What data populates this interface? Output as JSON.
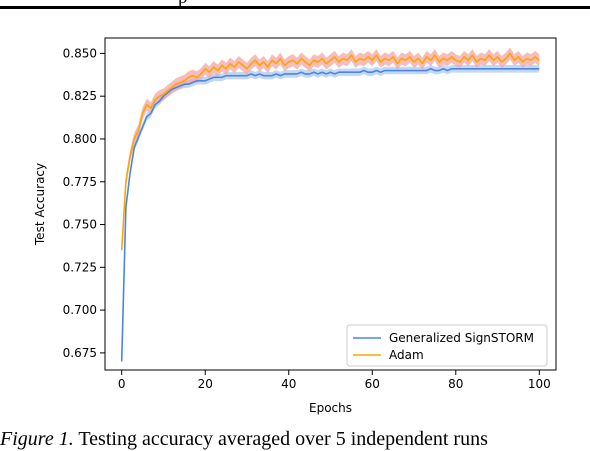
{
  "page": {
    "top_fragment": "p",
    "caption_label": "Figure 1.",
    "caption_text": "Testing accuracy averaged over 5 independent runs"
  },
  "colors": {
    "sign_storm": "#4a86e8",
    "sign_storm_band": "#aecbef",
    "adam": "#ffa500",
    "adam_band": "#f4a6a6"
  },
  "chart_data": {
    "type": "line",
    "title": "",
    "xlabel": "Epochs",
    "ylabel": "Test Accuracy",
    "xlim": [
      -4,
      104
    ],
    "ylim": [
      0.665,
      0.859
    ],
    "xticks": [
      0,
      20,
      40,
      60,
      80,
      100
    ],
    "yticks": [
      0.675,
      0.7,
      0.725,
      0.75,
      0.775,
      0.8,
      0.825,
      0.85
    ],
    "ytick_labels": [
      "0.675",
      "0.700",
      "0.725",
      "0.750",
      "0.775",
      "0.800",
      "0.825",
      "0.850"
    ],
    "grid": false,
    "legend_position": "lower-right",
    "series": [
      {
        "name": "Generalized SignSTORM",
        "color": "#4a86e8",
        "band_halfwidth": 0.0022,
        "x": [
          0,
          1,
          2,
          3,
          4,
          5,
          6,
          7,
          8,
          9,
          10,
          11,
          12,
          13,
          14,
          15,
          16,
          17,
          18,
          19,
          20,
          21,
          22,
          23,
          24,
          25,
          26,
          27,
          28,
          29,
          30,
          31,
          32,
          33,
          34,
          35,
          36,
          37,
          38,
          39,
          40,
          41,
          42,
          43,
          44,
          45,
          46,
          47,
          48,
          49,
          50,
          51,
          52,
          53,
          54,
          55,
          56,
          57,
          58,
          59,
          60,
          61,
          62,
          63,
          64,
          65,
          66,
          67,
          68,
          69,
          70,
          71,
          72,
          73,
          74,
          75,
          76,
          77,
          78,
          79,
          80,
          81,
          82,
          83,
          84,
          85,
          86,
          87,
          88,
          89,
          90,
          91,
          92,
          93,
          94,
          95,
          96,
          97,
          98,
          99,
          100
        ],
        "y": [
          0.67,
          0.76,
          0.78,
          0.795,
          0.801,
          0.807,
          0.813,
          0.815,
          0.82,
          0.822,
          0.825,
          0.827,
          0.829,
          0.83,
          0.831,
          0.832,
          0.832,
          0.833,
          0.834,
          0.834,
          0.834,
          0.835,
          0.836,
          0.836,
          0.836,
          0.837,
          0.837,
          0.837,
          0.837,
          0.837,
          0.837,
          0.838,
          0.837,
          0.838,
          0.837,
          0.837,
          0.837,
          0.838,
          0.837,
          0.838,
          0.838,
          0.838,
          0.838,
          0.839,
          0.838,
          0.838,
          0.839,
          0.838,
          0.839,
          0.838,
          0.839,
          0.838,
          0.839,
          0.839,
          0.839,
          0.839,
          0.839,
          0.839,
          0.84,
          0.839,
          0.839,
          0.84,
          0.839,
          0.84,
          0.84,
          0.84,
          0.84,
          0.84,
          0.84,
          0.84,
          0.84,
          0.84,
          0.84,
          0.84,
          0.841,
          0.84,
          0.84,
          0.841,
          0.84,
          0.841,
          0.841,
          0.841,
          0.841,
          0.841,
          0.841,
          0.841,
          0.841,
          0.841,
          0.841,
          0.841,
          0.841,
          0.841,
          0.841,
          0.841,
          0.841,
          0.841,
          0.841,
          0.841,
          0.841,
          0.841,
          0.841
        ]
      },
      {
        "name": "Adam",
        "color": "#ffa500",
        "band_halfwidth": 0.0035,
        "x": [
          0,
          1,
          2,
          3,
          4,
          5,
          6,
          7,
          8,
          9,
          10,
          11,
          12,
          13,
          14,
          15,
          16,
          17,
          18,
          19,
          20,
          21,
          22,
          23,
          24,
          25,
          26,
          27,
          28,
          29,
          30,
          31,
          32,
          33,
          34,
          35,
          36,
          37,
          38,
          39,
          40,
          41,
          42,
          43,
          44,
          45,
          46,
          47,
          48,
          49,
          50,
          51,
          52,
          53,
          54,
          55,
          56,
          57,
          58,
          59,
          60,
          61,
          62,
          63,
          64,
          65,
          66,
          67,
          68,
          69,
          70,
          71,
          72,
          73,
          74,
          75,
          76,
          77,
          78,
          79,
          80,
          81,
          82,
          83,
          84,
          85,
          86,
          87,
          88,
          89,
          90,
          91,
          92,
          93,
          94,
          95,
          96,
          97,
          98,
          99,
          100
        ],
        "y": [
          0.735,
          0.775,
          0.79,
          0.8,
          0.805,
          0.815,
          0.82,
          0.818,
          0.823,
          0.825,
          0.826,
          0.828,
          0.83,
          0.832,
          0.833,
          0.834,
          0.836,
          0.837,
          0.836,
          0.838,
          0.841,
          0.839,
          0.842,
          0.84,
          0.843,
          0.841,
          0.844,
          0.842,
          0.845,
          0.843,
          0.841,
          0.844,
          0.846,
          0.843,
          0.845,
          0.842,
          0.846,
          0.844,
          0.847,
          0.843,
          0.845,
          0.846,
          0.844,
          0.847,
          0.845,
          0.843,
          0.846,
          0.845,
          0.847,
          0.844,
          0.846,
          0.848,
          0.845,
          0.847,
          0.846,
          0.849,
          0.845,
          0.847,
          0.846,
          0.848,
          0.846,
          0.849,
          0.845,
          0.847,
          0.846,
          0.848,
          0.844,
          0.847,
          0.846,
          0.848,
          0.845,
          0.847,
          0.844,
          0.848,
          0.846,
          0.849,
          0.845,
          0.847,
          0.846,
          0.848,
          0.846,
          0.845,
          0.848,
          0.846,
          0.849,
          0.845,
          0.847,
          0.846,
          0.849,
          0.846,
          0.848,
          0.845,
          0.847,
          0.85,
          0.846,
          0.848,
          0.845,
          0.847,
          0.846,
          0.848,
          0.846
        ]
      }
    ]
  }
}
